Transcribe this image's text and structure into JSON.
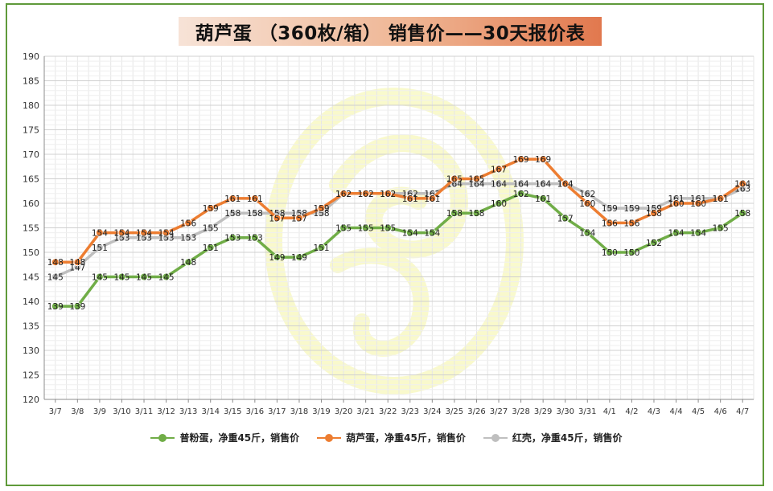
{
  "chart_data": {
    "type": "line",
    "title": "葫芦蛋 （360枚/箱） 销售价——30天报价表",
    "xlabel": "",
    "ylabel": "",
    "ylim": [
      120,
      190
    ],
    "yticks": [
      120,
      125,
      130,
      135,
      140,
      145,
      150,
      155,
      160,
      165,
      170,
      175,
      180,
      185,
      190
    ],
    "grid": true,
    "legend_position": "bottom",
    "categories": [
      "3/7",
      "3/8",
      "3/9",
      "3/10",
      "3/11",
      "3/12",
      "3/13",
      "3/14",
      "3/15",
      "3/16",
      "3/17",
      "3/18",
      "3/19",
      "3/20",
      "3/21",
      "3/22",
      "3/23",
      "3/24",
      "3/25",
      "3/26",
      "3/27",
      "3/28",
      "3/29",
      "3/30",
      "3/31",
      "4/1",
      "4/2",
      "4/3",
      "4/4",
      "4/5",
      "4/6",
      "4/7"
    ],
    "series": [
      {
        "name": "普粉蛋，净重45斤，销售价",
        "color": "#70ad47",
        "values": [
          139,
          139,
          145,
          145,
          145,
          145,
          148,
          151,
          153,
          153,
          149,
          149,
          151,
          155,
          155,
          155,
          154,
          154,
          158,
          158,
          160,
          162,
          161,
          157,
          154,
          150,
          150,
          152,
          154,
          154,
          155,
          158
        ]
      },
      {
        "name": "葫芦蛋，净重45斤，销售价",
        "color": "#ed7d31",
        "values": [
          148,
          148,
          154,
          154,
          154,
          154,
          156,
          159,
          161,
          161,
          157,
          157,
          159,
          162,
          162,
          162,
          161,
          161,
          165,
          165,
          167,
          169,
          169,
          164,
          160,
          156,
          156,
          158,
          160,
          160,
          161,
          164
        ]
      },
      {
        "name": "红壳，净重45斤，销售价",
        "color": "#bfbfbf",
        "values": [
          145,
          147,
          151,
          153,
          153,
          153,
          153,
          155,
          158,
          158,
          158,
          158,
          158,
          162,
          162,
          162,
          162,
          162,
          164,
          164,
          164,
          164,
          164,
          164,
          162,
          159,
          159,
          159,
          161,
          161,
          161,
          163
        ]
      }
    ]
  }
}
